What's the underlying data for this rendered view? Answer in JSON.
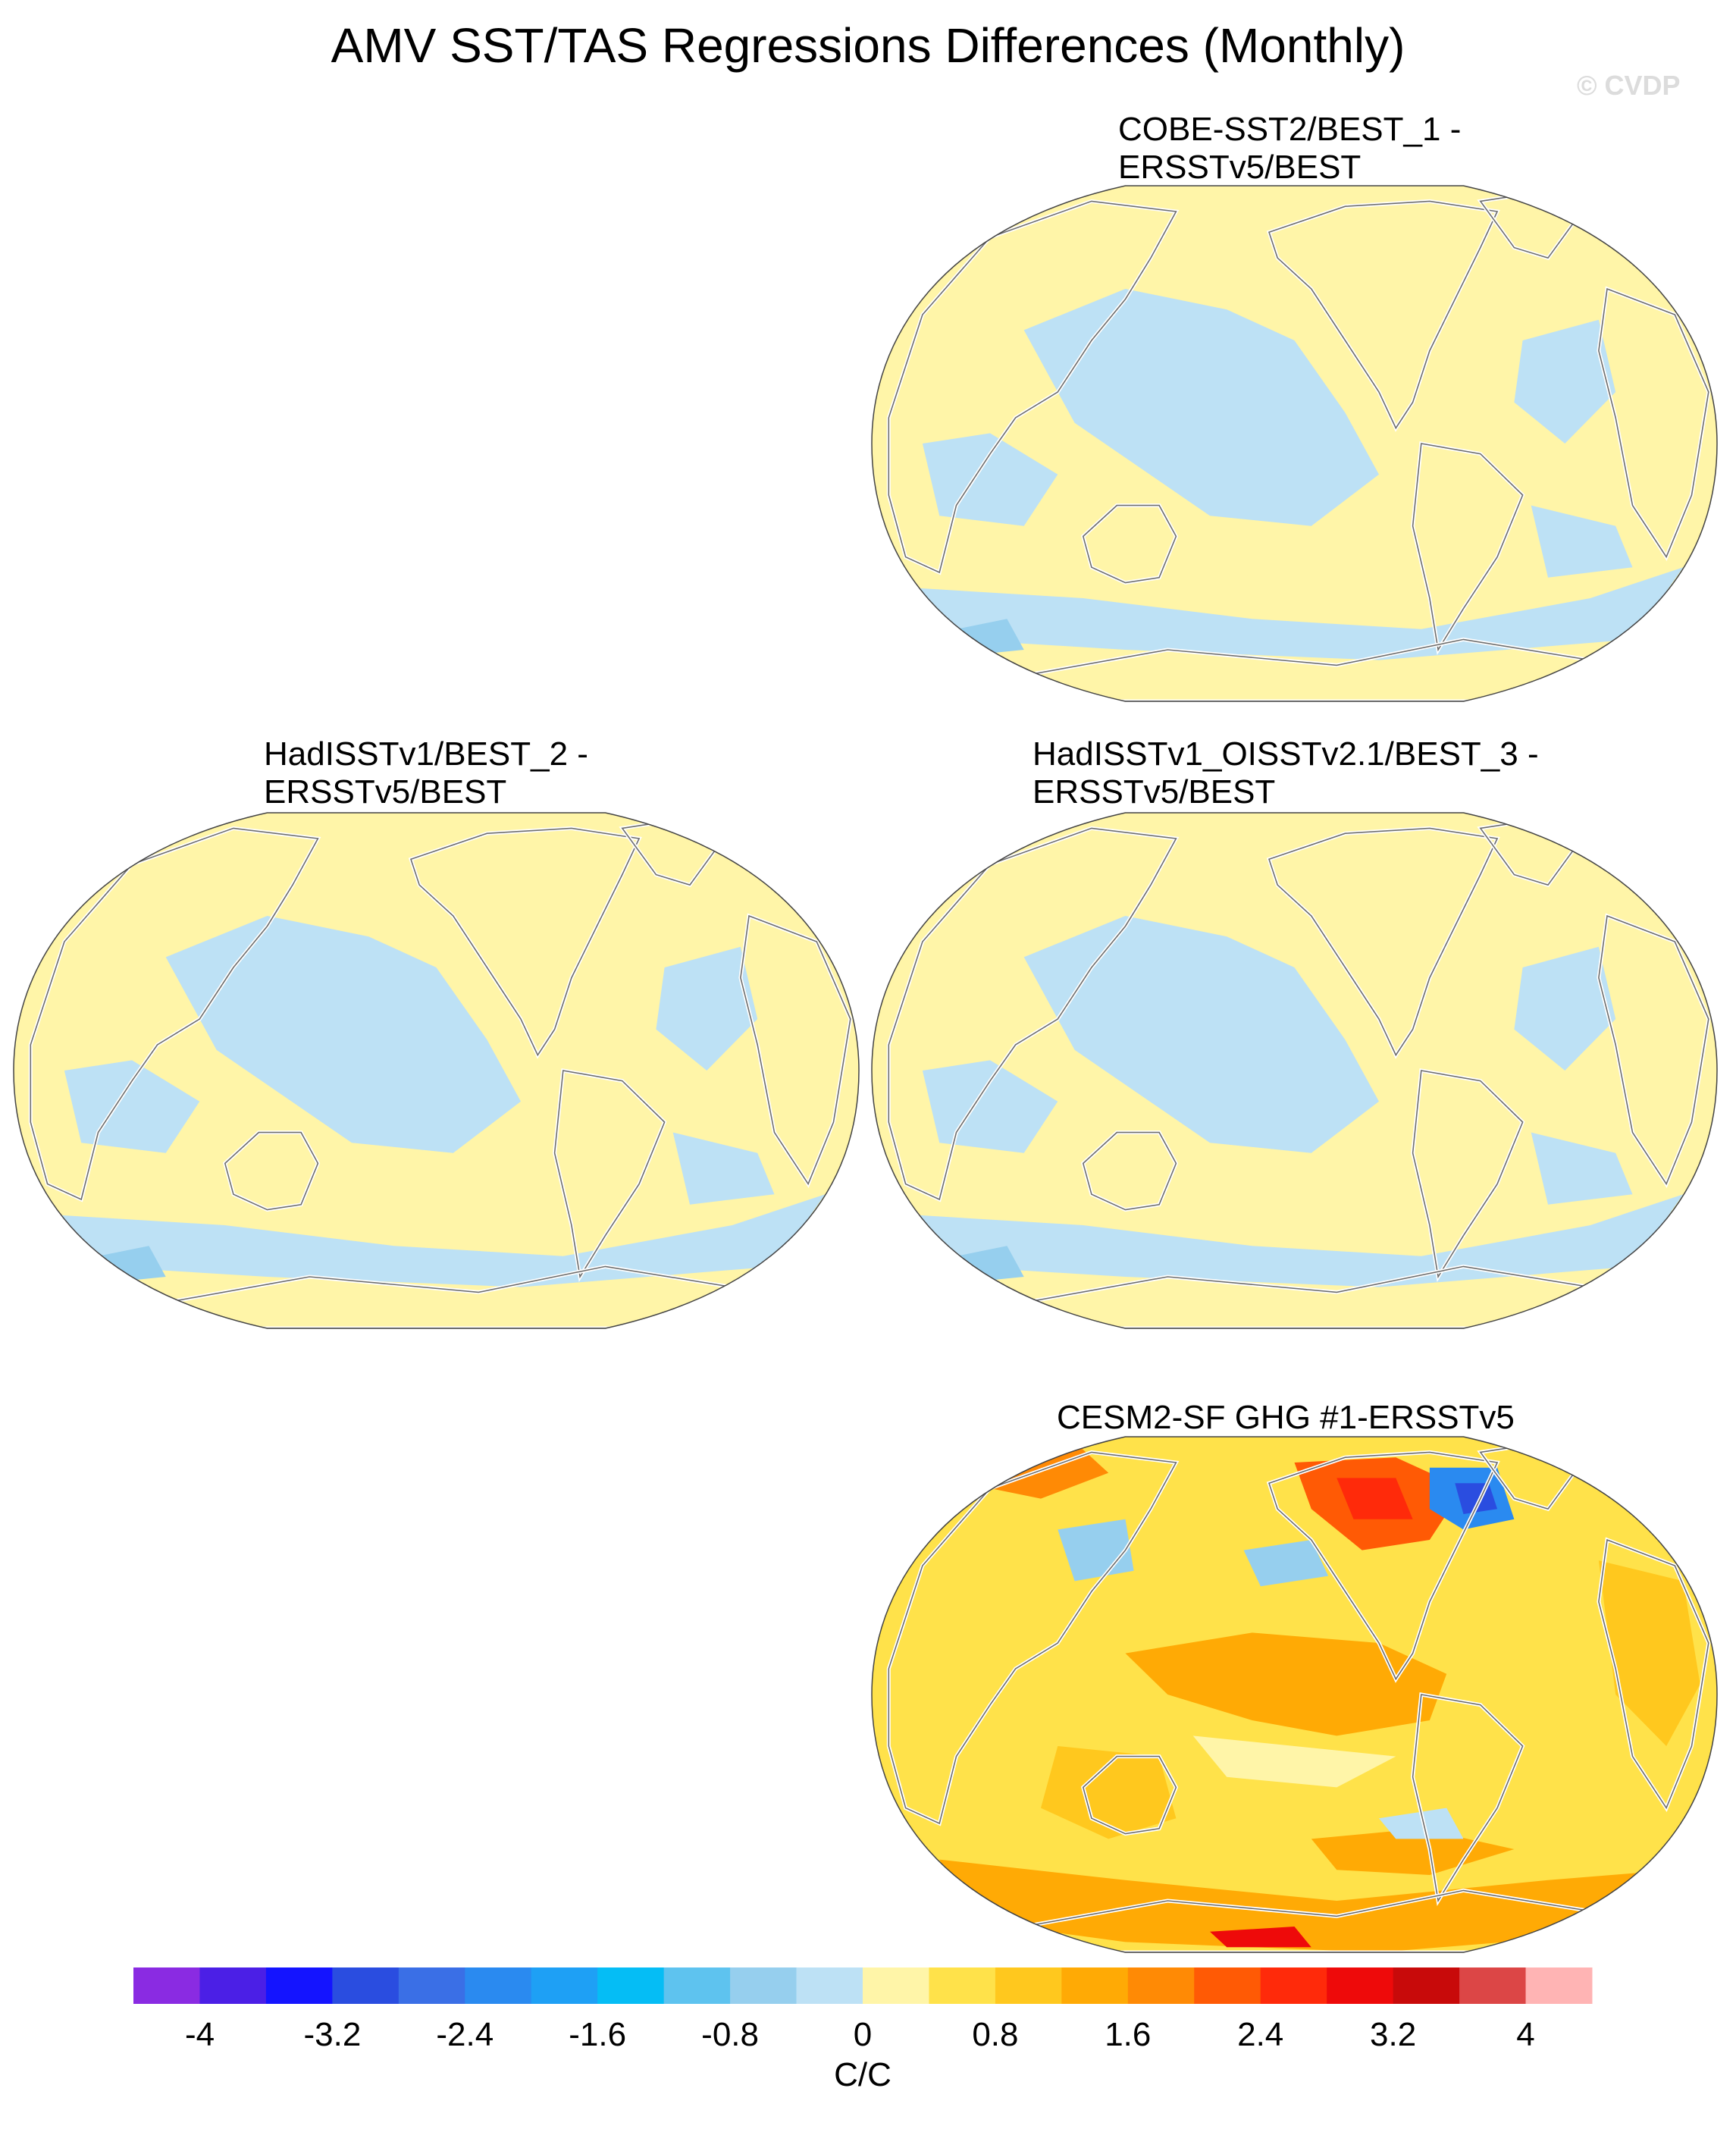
{
  "title": "AMV SST/TAS Regressions Differences (Monthly)",
  "watermark": "© CVDP",
  "panels": [
    {
      "id": "p1",
      "title_line1": "COBE-SST2/BEST_1 -",
      "title_line2": "ERSSTv5/BEST",
      "field": "weak"
    },
    {
      "id": "p2",
      "title_line1": "HadISSTv1/BEST_2 -",
      "title_line2": "ERSSTv5/BEST",
      "field": "weak"
    },
    {
      "id": "p3",
      "title_line1": "HadISSTv1_OISSTv2.1/BEST_3 -",
      "title_line2": "ERSSTv5/BEST",
      "field": "weak"
    },
    {
      "id": "p4",
      "title_line1": "CESM2-SF GHG #1-ERSSTv5",
      "title_line2": "",
      "field": "strong"
    }
  ],
  "chart_data": {
    "type": "heatmap",
    "title": "AMV SST/TAS Regressions Differences (Monthly)",
    "units": "C/C",
    "colorbar": {
      "levels": [
        -4.4,
        -4,
        -3.6,
        -3.2,
        -2.8,
        -2.4,
        -2,
        -1.6,
        -1.2,
        -0.8,
        -0.4,
        0,
        0.4,
        0.8,
        1.2,
        1.6,
        2,
        2.4,
        2.8,
        3.2,
        3.6,
        4,
        4.4
      ],
      "tick_labels": [
        "-4",
        "-3.2",
        "-2.4",
        "-1.6",
        "-0.8",
        "0",
        "0.8",
        "1.6",
        "2.4",
        "3.2",
        "4"
      ],
      "tick_values": [
        -4,
        -3.2,
        -2.4,
        -1.6,
        -0.8,
        0,
        0.8,
        1.6,
        2.4,
        3.2,
        4
      ],
      "colors": [
        "#8a2be2",
        "#4b1fe6",
        "#1414ff",
        "#2a4de0",
        "#3a6fe6",
        "#2a8af0",
        "#1ea0f5",
        "#05bdf5",
        "#5ec3ef",
        "#96cfee",
        "#bde1f5",
        "#fff5a8",
        "#ffe24a",
        "#ffc81e",
        "#ffaa05",
        "#ff8a05",
        "#ff5a05",
        "#ff2a0a",
        "#ee0a0a",
        "#c80a0a",
        "#dc4646",
        "#ffb4b4"
      ]
    },
    "projection": "Winkel tripel, Pacific-centered",
    "panels": [
      {
        "name": "COBE-SST2/BEST_1 - ERSSTv5/BEST",
        "range": [
          -0.8,
          0.8
        ]
      },
      {
        "name": "HadISSTv1/BEST_2 - ERSSTv5/BEST",
        "range": [
          -0.8,
          0.8
        ]
      },
      {
        "name": "HadISSTv1_OISSTv2.1/BEST_3 - ERSSTv5/BEST",
        "range": [
          -0.8,
          0.8
        ]
      },
      {
        "name": "CESM2-SF GHG #1-ERSSTv5",
        "range": [
          -2.4,
          3.2
        ]
      }
    ]
  }
}
